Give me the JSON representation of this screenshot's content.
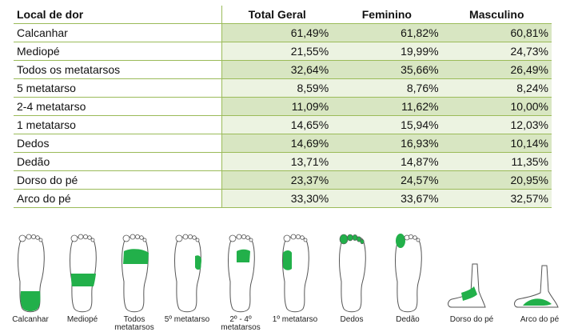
{
  "table": {
    "headers": [
      "Local de dor",
      "Total Geral",
      "Feminino",
      "Masculino"
    ],
    "rows": [
      {
        "label": "Calcanhar",
        "total": "61,49%",
        "feminino": "61,82%",
        "masculino": "60,81%"
      },
      {
        "label": "Mediopé",
        "total": "21,55%",
        "feminino": "19,99%",
        "masculino": "24,73%"
      },
      {
        "label": "Todos os metatarsos",
        "total": "32,64%",
        "feminino": "35,66%",
        "masculino": "26,49%"
      },
      {
        "label": "5 metatarso",
        "total": "8,59%",
        "feminino": "8,76%",
        "masculino": "8,24%"
      },
      {
        "label": "2-4 metatarso",
        "total": "11,09%",
        "feminino": "11,62%",
        "masculino": "10,00%"
      },
      {
        "label": "1 metatarso",
        "total": "14,65%",
        "feminino": "15,94%",
        "masculino": "12,03%"
      },
      {
        "label": "Dedos",
        "total": "14,69%",
        "feminino": "16,93%",
        "masculino": "10,14%"
      },
      {
        "label": "Dedão",
        "total": "13,71%",
        "feminino": "14,87%",
        "masculino": "11,35%"
      },
      {
        "label": "Dorso do pé",
        "total": "23,37%",
        "feminino": "24,57%",
        "masculino": "20,95%"
      },
      {
        "label": "Arco do pé",
        "total": "33,30%",
        "feminino": "33,67%",
        "masculino": "32,57%"
      }
    ]
  },
  "feet": {
    "labels": [
      "Calcanhar",
      "Mediopé",
      "Todos",
      "metatarsos",
      "5º metatarso",
      "2º - 4º",
      "metatarsos",
      "1º metatarso",
      "Dedos",
      "Dedão",
      "Dorso do pé",
      "Arco do pé"
    ]
  },
  "colors": {
    "highlight": "#22b04a",
    "outline": "#555555",
    "table_border": "#9bbb59",
    "row_dark": "#d8e6c2",
    "row_light": "#ecf3e1"
  }
}
